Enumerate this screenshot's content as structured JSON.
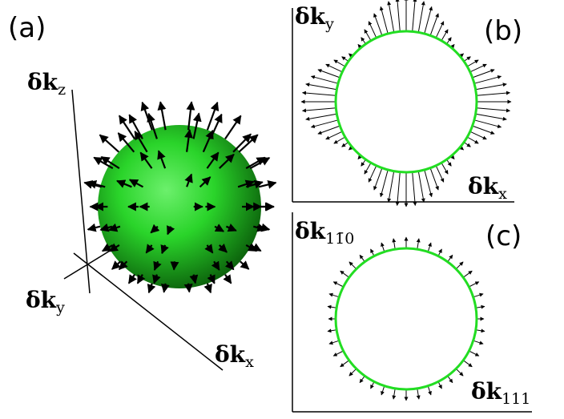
{
  "panels": {
    "a": {
      "letter": "(a)",
      "axes": {
        "z": {
          "main": "δk",
          "sub": "z"
        },
        "y": {
          "main": "δk",
          "sub": "y"
        },
        "x": {
          "main": "δk",
          "sub": "x"
        }
      }
    },
    "b": {
      "letter": "(b)",
      "axes": {
        "y": {
          "main": "δk",
          "sub": "y"
        },
        "x": {
          "main": "δk",
          "sub": "x"
        }
      }
    },
    "c": {
      "letter": "(c)",
      "axes": {
        "y": {
          "main": "δk",
          "sub": "11̄0"
        },
        "x": {
          "main": "δk",
          "sub": "111"
        }
      }
    }
  },
  "colors": {
    "sphere": "#2ad42a",
    "sphere_dark": "#0a5a0a",
    "circle": "#22dd22",
    "arrow": "#000000"
  }
}
